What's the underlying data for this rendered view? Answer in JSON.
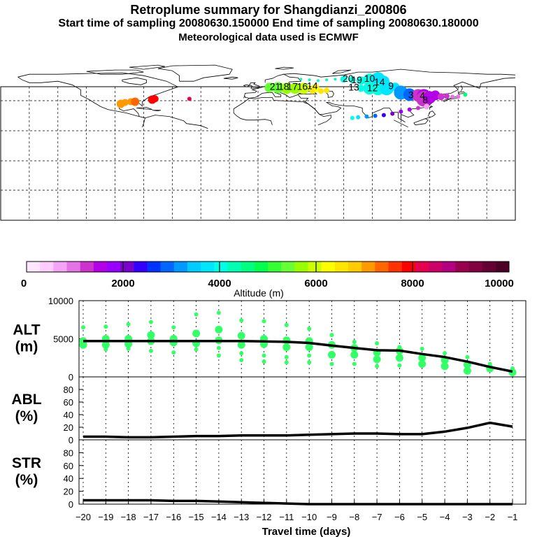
{
  "header": {
    "title": "Retroplume summary for Shangdianzi_200806",
    "sampling": "Start time of sampling 20080630.150000     End time of sampling 20080630.180000",
    "met_data": "Meteorological data used is ECMWF"
  },
  "colorbar": {
    "label": "Altitude (m)",
    "tick_labels": [
      "0",
      "2000",
      "4000",
      "6000",
      "8000",
      "10000"
    ],
    "colors": [
      "#ffe6ff",
      "#ffccff",
      "#f5a3f5",
      "#e673e6",
      "#cc33cc",
      "#b300e6",
      "#9900ff",
      "#7a00cc",
      "#3300ff",
      "#0033ff",
      "#0066ff",
      "#0099ff",
      "#00ccff",
      "#00e6ff",
      "#00ffe6",
      "#00ffb3",
      "#00ff80",
      "#00ff4d",
      "#33ff33",
      "#66ff33",
      "#99ff00",
      "#ccff00",
      "#ffff00",
      "#ffe600",
      "#ffcc00",
      "#ff9900",
      "#ff6600",
      "#ff3300",
      "#ff0000",
      "#e6004d",
      "#cc0066",
      "#b30080",
      "#99004d",
      "#800040",
      "#660033",
      "#4d0026"
    ]
  },
  "map": {
    "labels": [
      {
        "text": "21",
        "lon": 12,
        "lat": 53,
        "color": "#66ff33"
      },
      {
        "text": "18",
        "lon": 18,
        "lat": 53,
        "color": "#66ff33"
      },
      {
        "text": "17",
        "lon": 24,
        "lat": 53,
        "color": "#99ff00"
      },
      {
        "text": "16",
        "lon": 31,
        "lat": 53,
        "color": "#99ff00"
      },
      {
        "text": "14",
        "lon": 38,
        "lat": 54,
        "color": "#ccff00"
      },
      {
        "text": "20",
        "lon": 63,
        "lat": 64,
        "color": "#00ffb3"
      },
      {
        "text": "19",
        "lon": 69,
        "lat": 62,
        "color": "#00ffb3"
      },
      {
        "text": "10",
        "lon": 78,
        "lat": 64,
        "color": "#33ff33"
      },
      {
        "text": "14",
        "lon": 85,
        "lat": 59,
        "color": "#00ff80"
      },
      {
        "text": "13",
        "lon": 67,
        "lat": 52,
        "color": "#33ff33"
      },
      {
        "text": "12",
        "lon": 80,
        "lat": 51,
        "color": "#00ffb3"
      },
      {
        "text": "9",
        "lon": 93,
        "lat": 54,
        "color": "#00ffb3"
      },
      {
        "text": "3",
        "lon": 107,
        "lat": 41,
        "color": "#00e6ff"
      },
      {
        "text": "4",
        "lon": 115,
        "lat": 40,
        "color": "#9900ff"
      },
      {
        "text": "8",
        "lon": 117,
        "lat": 34,
        "color": "#b300e6"
      }
    ]
  },
  "chart_data": [
    {
      "type": "scatter+line",
      "panel": "ALT",
      "ylabel": "ALT\n(m)",
      "ylabel_line1": "ALT",
      "ylabel_line2": "(m)",
      "yticks": [
        "10000",
        "5000",
        "0"
      ],
      "ylim": [
        0,
        10000
      ],
      "x": [
        -20,
        -19,
        -18,
        -17,
        -16,
        -15,
        -14,
        -13,
        -12,
        -11,
        -10,
        -9,
        -8,
        -7,
        -6,
        -5,
        -4,
        -3,
        -2,
        -1
      ],
      "median": [
        4700,
        4700,
        4700,
        4700,
        4700,
        4700,
        4700,
        4700,
        4650,
        4600,
        4450,
        4100,
        3800,
        3500,
        3450,
        3000,
        2600,
        2000,
        1300,
        700
      ],
      "points": [
        {
          "x": -20,
          "y": [
            6500,
            4700,
            4200
          ]
        },
        {
          "x": -19,
          "y": [
            6600,
            5000,
            4200,
            3600
          ]
        },
        {
          "x": -18,
          "y": [
            6900,
            5000,
            4300,
            3700
          ]
        },
        {
          "x": -17,
          "y": [
            7200,
            5500,
            4700,
            3400
          ]
        },
        {
          "x": -16,
          "y": [
            6500,
            5000,
            4500,
            3200
          ]
        },
        {
          "x": -15,
          "y": [
            8200,
            5700,
            4400,
            3600
          ]
        },
        {
          "x": -14,
          "y": [
            8400,
            6200,
            4800,
            3800,
            2800
          ]
        },
        {
          "x": -13,
          "y": [
            7400,
            5400,
            4200,
            3100,
            2200
          ]
        },
        {
          "x": -12,
          "y": [
            7300,
            5000,
            4300,
            2800,
            2000
          ]
        },
        {
          "x": -11,
          "y": [
            6800,
            4800,
            3900,
            2600,
            1900
          ]
        },
        {
          "x": -10,
          "y": [
            6300,
            4700,
            3900,
            2800,
            1900
          ]
        },
        {
          "x": -9,
          "y": [
            5500,
            4200,
            2900,
            1700
          ]
        },
        {
          "x": -8,
          "y": [
            4600,
            3800,
            2900,
            1700
          ]
        },
        {
          "x": -7,
          "y": [
            4400,
            3200,
            2300,
            1400
          ]
        },
        {
          "x": -6,
          "y": [
            3900,
            3400,
            2500,
            1500
          ]
        },
        {
          "x": -5,
          "y": [
            3700,
            2500,
            1700
          ]
        },
        {
          "x": -4,
          "y": [
            3100,
            2200,
            1400
          ]
        },
        {
          "x": -3,
          "y": [
            2600,
            1600,
            800
          ]
        },
        {
          "x": -2,
          "y": [
            1700,
            1100
          ]
        },
        {
          "x": -1,
          "y": [
            1100,
            600
          ]
        }
      ]
    },
    {
      "type": "line",
      "panel": "ABL",
      "ylabel_line1": "ABL",
      "ylabel_line2": "(%)",
      "yticks": [
        "80",
        "60",
        "40",
        "20",
        "0"
      ],
      "ylim": [
        0,
        100
      ],
      "x": [
        -20,
        -19,
        -18,
        -17,
        -16,
        -15,
        -14,
        -13,
        -12,
        -11,
        -10,
        -9,
        -8,
        -7,
        -6,
        -5,
        -4,
        -3,
        -2,
        -1
      ],
      "values": [
        5,
        5,
        4,
        4,
        5,
        6,
        6,
        7,
        7,
        7,
        8,
        9,
        10,
        10,
        9,
        9,
        13,
        19,
        27,
        21
      ]
    },
    {
      "type": "line",
      "panel": "STR",
      "ylabel_line1": "STR",
      "ylabel_line2": "(%)",
      "yticks": [
        "80",
        "60",
        "40",
        "20",
        "0"
      ],
      "ylim": [
        0,
        100
      ],
      "x": [
        -20,
        -19,
        -18,
        -17,
        -16,
        -15,
        -14,
        -13,
        -12,
        -11,
        -10,
        -9,
        -8,
        -7,
        -6,
        -5,
        -4,
        -3,
        -2,
        -1
      ],
      "values": [
        6,
        6,
        6,
        6,
        5,
        5,
        4,
        3,
        2,
        1,
        0,
        0,
        0,
        0,
        0,
        0,
        0,
        0,
        0,
        0
      ]
    }
  ],
  "xaxis": {
    "label": "Travel time (days)",
    "tick_labels": [
      "−20",
      "−19",
      "−18",
      "−17",
      "−16",
      "−15",
      "−14",
      "−13",
      "−12",
      "−11",
      "−10",
      "−9",
      "−8",
      "−7",
      "−6",
      "−5",
      "−4",
      "−3",
      "−2",
      "−1"
    ]
  }
}
